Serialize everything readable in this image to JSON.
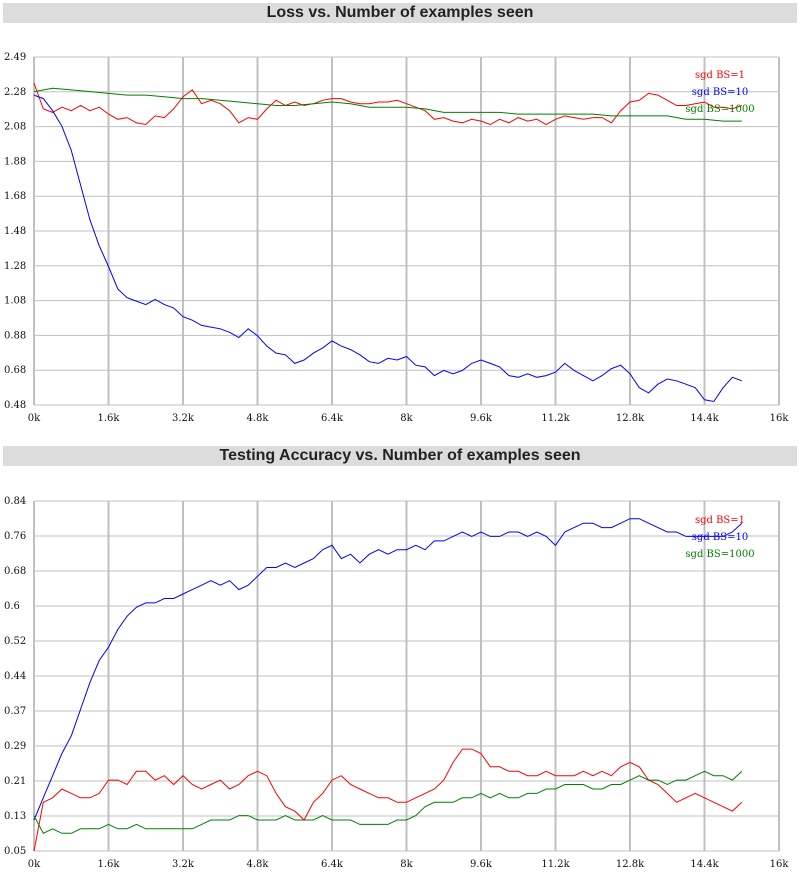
{
  "chart_data": [
    {
      "type": "line",
      "title": "Loss vs. Number of examples seen",
      "xlabel": "",
      "ylabel": "",
      "xlim": [
        0,
        16000
      ],
      "ylim": [
        0.48,
        2.49
      ],
      "x_ticks": [
        "0k",
        "1.6k",
        "3.2k",
        "4.8k",
        "6.4k",
        "8k",
        "9.6k",
        "11.2k",
        "12.8k",
        "14.4k",
        "16k"
      ],
      "y_ticks": [
        "2.49",
        "2.28",
        "2.08",
        "1.88",
        "1.68",
        "1.48",
        "1.28",
        "1.08",
        "0.88",
        "0.68",
        "0.48"
      ],
      "grid": true,
      "legend_position": "top-right",
      "series": [
        {
          "name": "sgd BS=1",
          "color": "#ff0000",
          "x": [
            0,
            200,
            400,
            600,
            800,
            1000,
            1200,
            1400,
            1600,
            1800,
            2000,
            2200,
            2400,
            2600,
            2800,
            3000,
            3200,
            3400,
            3600,
            3800,
            4000,
            4200,
            4400,
            4600,
            4800,
            5000,
            5200,
            5400,
            5600,
            5800,
            6000,
            6200,
            6400,
            6600,
            6800,
            7000,
            7200,
            7400,
            7600,
            7800,
            8000,
            8200,
            8400,
            8600,
            8800,
            9000,
            9200,
            9400,
            9600,
            9800,
            10000,
            10200,
            10400,
            10600,
            10800,
            11000,
            11200,
            11400,
            11600,
            11800,
            12000,
            12200,
            12400,
            12600,
            12800,
            13000,
            13200,
            13400,
            13600,
            13800,
            14000,
            14200,
            14400,
            14600,
            14800,
            15000,
            15200
          ],
          "y": [
            2.34,
            2.19,
            2.17,
            2.2,
            2.18,
            2.21,
            2.18,
            2.2,
            2.16,
            2.13,
            2.14,
            2.11,
            2.1,
            2.15,
            2.14,
            2.19,
            2.26,
            2.3,
            2.22,
            2.24,
            2.22,
            2.18,
            2.11,
            2.14,
            2.13,
            2.19,
            2.24,
            2.21,
            2.23,
            2.21,
            2.22,
            2.24,
            2.25,
            2.25,
            2.23,
            2.22,
            2.22,
            2.23,
            2.23,
            2.24,
            2.22,
            2.2,
            2.18,
            2.13,
            2.14,
            2.12,
            2.11,
            2.13,
            2.12,
            2.1,
            2.13,
            2.11,
            2.14,
            2.12,
            2.13,
            2.1,
            2.13,
            2.15,
            2.14,
            2.13,
            2.14,
            2.14,
            2.11,
            2.18,
            2.23,
            2.24,
            2.28,
            2.27,
            2.24,
            2.21,
            2.21,
            2.22,
            2.23,
            2.2,
            2.2,
            2.19,
            2.21
          ]
        },
        {
          "name": "sgd BS=10",
          "color": "#0000ff",
          "x": [
            0,
            200,
            400,
            600,
            800,
            1000,
            1200,
            1400,
            1600,
            1800,
            2000,
            2200,
            2400,
            2600,
            2800,
            3000,
            3200,
            3400,
            3600,
            3800,
            4000,
            4200,
            4400,
            4600,
            4800,
            5000,
            5200,
            5400,
            5600,
            5800,
            6000,
            6200,
            6400,
            6600,
            6800,
            7000,
            7200,
            7400,
            7600,
            7800,
            8000,
            8200,
            8400,
            8600,
            8800,
            9000,
            9200,
            9400,
            9600,
            9800,
            10000,
            10200,
            10400,
            10600,
            10800,
            11000,
            11200,
            11400,
            11600,
            11800,
            12000,
            12200,
            12400,
            12600,
            12800,
            13000,
            13200,
            13400,
            13600,
            13800,
            14000,
            14200,
            14400,
            14600,
            14800,
            15000,
            15200
          ],
          "y": [
            2.27,
            2.25,
            2.18,
            2.09,
            1.95,
            1.75,
            1.55,
            1.4,
            1.28,
            1.15,
            1.1,
            1.08,
            1.06,
            1.09,
            1.06,
            1.04,
            0.99,
            0.97,
            0.94,
            0.93,
            0.92,
            0.9,
            0.87,
            0.92,
            0.88,
            0.82,
            0.78,
            0.77,
            0.72,
            0.74,
            0.78,
            0.81,
            0.85,
            0.82,
            0.8,
            0.77,
            0.73,
            0.72,
            0.75,
            0.74,
            0.76,
            0.71,
            0.7,
            0.65,
            0.68,
            0.66,
            0.68,
            0.72,
            0.74,
            0.72,
            0.7,
            0.65,
            0.64,
            0.66,
            0.64,
            0.65,
            0.67,
            0.72,
            0.68,
            0.65,
            0.62,
            0.65,
            0.69,
            0.71,
            0.66,
            0.58,
            0.55,
            0.6,
            0.63,
            0.62,
            0.6,
            0.58,
            0.51,
            0.5,
            0.58,
            0.64,
            0.62
          ]
        },
        {
          "name": "sgd BS=1000",
          "color": "#008000",
          "x": [
            0,
            400,
            800,
            1200,
            1600,
            2000,
            2400,
            2800,
            3200,
            3600,
            4000,
            4400,
            4800,
            5200,
            5600,
            6000,
            6400,
            6800,
            7200,
            7600,
            8000,
            8400,
            8800,
            9200,
            9600,
            10000,
            10400,
            10800,
            11200,
            11600,
            12000,
            12400,
            12800,
            13200,
            13600,
            14000,
            14400,
            14800,
            15200
          ],
          "y": [
            2.29,
            2.31,
            2.3,
            2.29,
            2.28,
            2.27,
            2.27,
            2.26,
            2.25,
            2.25,
            2.24,
            2.23,
            2.22,
            2.21,
            2.21,
            2.22,
            2.23,
            2.22,
            2.2,
            2.2,
            2.2,
            2.19,
            2.17,
            2.17,
            2.17,
            2.17,
            2.16,
            2.16,
            2.16,
            2.16,
            2.16,
            2.15,
            2.15,
            2.15,
            2.15,
            2.13,
            2.13,
            2.12,
            2.12
          ]
        }
      ]
    },
    {
      "type": "line",
      "title": "Testing Accuracy vs. Number of examples seen",
      "xlabel": "",
      "ylabel": "",
      "xlim": [
        0,
        16000
      ],
      "ylim": [
        0.05,
        0.84
      ],
      "x_ticks": [
        "0k",
        "1.6k",
        "3.2k",
        "4.8k",
        "6.4k",
        "8k",
        "9.6k",
        "11.2k",
        "12.8k",
        "14.4k",
        "16k"
      ],
      "y_ticks": [
        "0.84",
        "0.76",
        "0.68",
        "0.6",
        "0.52",
        "0.44",
        "0.37",
        "0.29",
        "0.21",
        "0.13",
        "0.05"
      ],
      "grid": true,
      "legend_position": "top-right",
      "series": [
        {
          "name": "sgd BS=1",
          "color": "#ff0000",
          "x": [
            0,
            200,
            400,
            600,
            800,
            1000,
            1200,
            1400,
            1600,
            1800,
            2000,
            2200,
            2400,
            2600,
            2800,
            3000,
            3200,
            3400,
            3600,
            3800,
            4000,
            4200,
            4400,
            4600,
            4800,
            5000,
            5200,
            5400,
            5600,
            5800,
            6000,
            6200,
            6400,
            6600,
            6800,
            7000,
            7200,
            7400,
            7600,
            7800,
            8000,
            8200,
            8400,
            8600,
            8800,
            9000,
            9200,
            9400,
            9600,
            9800,
            10000,
            10200,
            10400,
            10600,
            10800,
            11000,
            11200,
            11400,
            11600,
            11800,
            12000,
            12200,
            12400,
            12600,
            12800,
            13000,
            13200,
            13400,
            13600,
            13800,
            14000,
            14200,
            14400,
            14600,
            14800,
            15000,
            15200
          ],
          "y": [
            0.05,
            0.16,
            0.17,
            0.19,
            0.18,
            0.17,
            0.17,
            0.18,
            0.21,
            0.21,
            0.2,
            0.23,
            0.23,
            0.21,
            0.22,
            0.2,
            0.22,
            0.2,
            0.19,
            0.2,
            0.21,
            0.19,
            0.2,
            0.22,
            0.23,
            0.22,
            0.18,
            0.15,
            0.14,
            0.12,
            0.16,
            0.18,
            0.21,
            0.22,
            0.2,
            0.19,
            0.18,
            0.17,
            0.17,
            0.16,
            0.16,
            0.17,
            0.18,
            0.19,
            0.21,
            0.25,
            0.28,
            0.28,
            0.27,
            0.24,
            0.24,
            0.23,
            0.23,
            0.22,
            0.22,
            0.23,
            0.22,
            0.22,
            0.22,
            0.23,
            0.22,
            0.23,
            0.22,
            0.24,
            0.25,
            0.24,
            0.21,
            0.2,
            0.18,
            0.16,
            0.17,
            0.18,
            0.17,
            0.16,
            0.15,
            0.14,
            0.16
          ]
        },
        {
          "name": "sgd BS=10",
          "color": "#0000ff",
          "x": [
            0,
            200,
            400,
            600,
            800,
            1000,
            1200,
            1400,
            1600,
            1800,
            2000,
            2200,
            2400,
            2600,
            2800,
            3000,
            3200,
            3400,
            3600,
            3800,
            4000,
            4200,
            4400,
            4600,
            4800,
            5000,
            5200,
            5400,
            5600,
            5800,
            6000,
            6200,
            6400,
            6600,
            6800,
            7000,
            7200,
            7400,
            7600,
            7800,
            8000,
            8200,
            8400,
            8600,
            8800,
            9000,
            9200,
            9400,
            9600,
            9800,
            10000,
            10200,
            10400,
            10600,
            10800,
            11000,
            11200,
            11400,
            11600,
            11800,
            12000,
            12200,
            12400,
            12600,
            12800,
            13000,
            13200,
            13400,
            13600,
            13800,
            14000,
            14200,
            14400,
            14600,
            14800,
            15000,
            15200
          ],
          "y": [
            0.12,
            0.17,
            0.22,
            0.27,
            0.31,
            0.37,
            0.43,
            0.48,
            0.51,
            0.55,
            0.58,
            0.6,
            0.61,
            0.61,
            0.62,
            0.62,
            0.63,
            0.64,
            0.65,
            0.66,
            0.65,
            0.66,
            0.64,
            0.65,
            0.67,
            0.69,
            0.69,
            0.7,
            0.69,
            0.7,
            0.71,
            0.73,
            0.74,
            0.71,
            0.72,
            0.7,
            0.72,
            0.73,
            0.72,
            0.73,
            0.73,
            0.74,
            0.73,
            0.75,
            0.75,
            0.76,
            0.77,
            0.76,
            0.77,
            0.76,
            0.76,
            0.77,
            0.77,
            0.76,
            0.77,
            0.76,
            0.74,
            0.77,
            0.78,
            0.79,
            0.79,
            0.78,
            0.78,
            0.79,
            0.8,
            0.8,
            0.79,
            0.78,
            0.77,
            0.77,
            0.76,
            0.76,
            0.76,
            0.76,
            0.76,
            0.77,
            0.79
          ]
        },
        {
          "name": "sgd BS=1000",
          "color": "#008000",
          "x": [
            0,
            200,
            400,
            600,
            800,
            1000,
            1200,
            1400,
            1600,
            1800,
            2000,
            2200,
            2400,
            2600,
            2800,
            3000,
            3200,
            3400,
            3600,
            3800,
            4000,
            4200,
            4400,
            4600,
            4800,
            5000,
            5200,
            5400,
            5600,
            5800,
            6000,
            6200,
            6400,
            6600,
            6800,
            7000,
            7200,
            7400,
            7600,
            7800,
            8000,
            8200,
            8400,
            8600,
            8800,
            9000,
            9200,
            9400,
            9600,
            9800,
            10000,
            10200,
            10400,
            10600,
            10800,
            11000,
            11200,
            11400,
            11600,
            11800,
            12000,
            12200,
            12400,
            12600,
            12800,
            13000,
            13200,
            13400,
            13600,
            13800,
            14000,
            14200,
            14400,
            14600,
            14800,
            15000,
            15200
          ],
          "y": [
            0.13,
            0.09,
            0.1,
            0.09,
            0.09,
            0.1,
            0.1,
            0.1,
            0.11,
            0.1,
            0.1,
            0.11,
            0.1,
            0.1,
            0.1,
            0.1,
            0.1,
            0.1,
            0.11,
            0.12,
            0.12,
            0.12,
            0.13,
            0.13,
            0.12,
            0.12,
            0.12,
            0.13,
            0.12,
            0.12,
            0.12,
            0.13,
            0.12,
            0.12,
            0.12,
            0.11,
            0.11,
            0.11,
            0.11,
            0.12,
            0.12,
            0.13,
            0.15,
            0.16,
            0.16,
            0.16,
            0.17,
            0.17,
            0.18,
            0.17,
            0.18,
            0.17,
            0.17,
            0.18,
            0.18,
            0.19,
            0.19,
            0.2,
            0.2,
            0.2,
            0.19,
            0.19,
            0.2,
            0.2,
            0.21,
            0.22,
            0.21,
            0.21,
            0.2,
            0.21,
            0.21,
            0.22,
            0.23,
            0.22,
            0.22,
            0.21,
            0.23
          ]
        }
      ]
    }
  ]
}
